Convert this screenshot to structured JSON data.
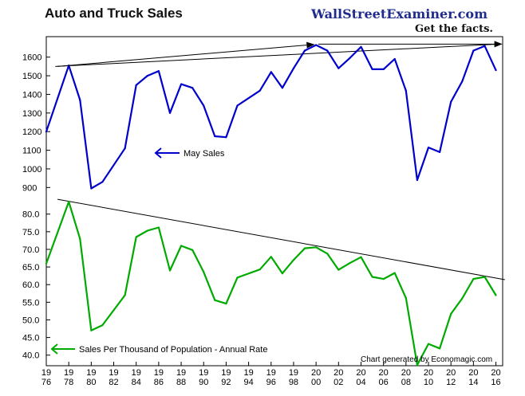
{
  "header": {
    "title": "Auto and Truck Sales",
    "brand": "WallStreetExaminer.com",
    "tagline": "Get the facts."
  },
  "chart_data": [
    {
      "type": "line",
      "name": "may_sales",
      "x": [
        1976,
        1978,
        1979,
        1980,
        1981,
        1983,
        1984,
        1985,
        1986,
        1987,
        1988,
        1989,
        1990,
        1991,
        1992,
        1993,
        1995,
        1996,
        1997,
        1998,
        1999,
        2000,
        2001,
        2002,
        2003,
        2004,
        2005,
        2006,
        2007,
        2008,
        2009,
        2010,
        2011,
        2012,
        2013,
        2014,
        2015,
        2016
      ],
      "values": [
        1200,
        1555,
        1370,
        895,
        930,
        1110,
        1450,
        1500,
        1525,
        1300,
        1455,
        1435,
        1340,
        1175,
        1170,
        1340,
        1420,
        1520,
        1435,
        1540,
        1635,
        1665,
        1635,
        1540,
        1595,
        1655,
        1535,
        1535,
        1590,
        1420,
        940,
        1115,
        1090,
        1360,
        1470,
        1635,
        1660,
        1530
      ],
      "color": "#0000cc",
      "ylim": [
        880,
        1680
      ],
      "yticks": [
        "900",
        "1000",
        "1100",
        "1200",
        "1300",
        "1400",
        "1500",
        "1600"
      ],
      "trendline": {
        "x": [
          1976.8,
          2016.2
        ],
        "values": [
          1550,
          1670
        ],
        "color": "#000000"
      },
      "annotation": "May Sales"
    },
    {
      "type": "line",
      "name": "sales_per_thousand",
      "x": [
        1976,
        1978,
        1979,
        1980,
        1981,
        1983,
        1984,
        1985,
        1986,
        1987,
        1988,
        1989,
        1990,
        1991,
        1992,
        1993,
        1995,
        1996,
        1997,
        1998,
        1999,
        2000,
        2001,
        2002,
        2003,
        2004,
        2005,
        2006,
        2007,
        2008,
        2009,
        2010,
        2011,
        2012,
        2013,
        2014,
        2015,
        2016
      ],
      "values": [
        66.0,
        83.5,
        73.0,
        47.0,
        48.5,
        57.0,
        73.5,
        75.3,
        76.2,
        64.0,
        71.0,
        69.8,
        63.6,
        55.6,
        54.6,
        62.0,
        64.3,
        67.9,
        63.2,
        67.0,
        70.3,
        70.6,
        68.8,
        64.2,
        66.1,
        67.8,
        62.2,
        61.6,
        63.3,
        56.2,
        37.2,
        43.2,
        41.9,
        51.7,
        56.1,
        61.6,
        62.2,
        57.0
      ],
      "color": "#00aa00",
      "ylim": [
        37,
        84
      ],
      "yticks": [
        "40.0",
        "45.0",
        "50.0",
        "55.0",
        "60.0",
        "65.0",
        "70.0",
        "75.0",
        "80.0"
      ],
      "trendline": {
        "x": [
          1977.0,
          2016.8
        ],
        "values": [
          84.2,
          61.4
        ],
        "color": "#000000"
      },
      "annotation": "Sales Per Thousand of Population - Annual Rate"
    }
  ],
  "x_axis": {
    "xlim": [
      1976,
      2016.6
    ],
    "ticks": [
      {
        "year": 1976,
        "top": "19",
        "bottom": "76"
      },
      {
        "year": 1978,
        "top": "19",
        "bottom": "78"
      },
      {
        "year": 1980,
        "top": "19",
        "bottom": "80"
      },
      {
        "year": 1982,
        "top": "19",
        "bottom": "82"
      },
      {
        "year": 1984,
        "top": "19",
        "bottom": "84"
      },
      {
        "year": 1986,
        "top": "19",
        "bottom": "86"
      },
      {
        "year": 1988,
        "top": "19",
        "bottom": "88"
      },
      {
        "year": 1990,
        "top": "19",
        "bottom": "90"
      },
      {
        "year": 1992,
        "top": "19",
        "bottom": "92"
      },
      {
        "year": 1994,
        "top": "19",
        "bottom": "94"
      },
      {
        "year": 1996,
        "top": "19",
        "bottom": "96"
      },
      {
        "year": 1998,
        "top": "19",
        "bottom": "98"
      },
      {
        "year": 2000,
        "top": "20",
        "bottom": "00"
      },
      {
        "year": 2002,
        "top": "20",
        "bottom": "02"
      },
      {
        "year": 2004,
        "top": "20",
        "bottom": "04"
      },
      {
        "year": 2006,
        "top": "20",
        "bottom": "06"
      },
      {
        "year": 2008,
        "top": "20",
        "bottom": "08"
      },
      {
        "year": 2010,
        "top": "20",
        "bottom": "10"
      },
      {
        "year": 2012,
        "top": "20",
        "bottom": "12"
      },
      {
        "year": 2014,
        "top": "20",
        "bottom": "14"
      },
      {
        "year": 2016,
        "top": "20",
        "bottom": "16"
      }
    ]
  },
  "credit": "Chart generated by Economagic.com"
}
